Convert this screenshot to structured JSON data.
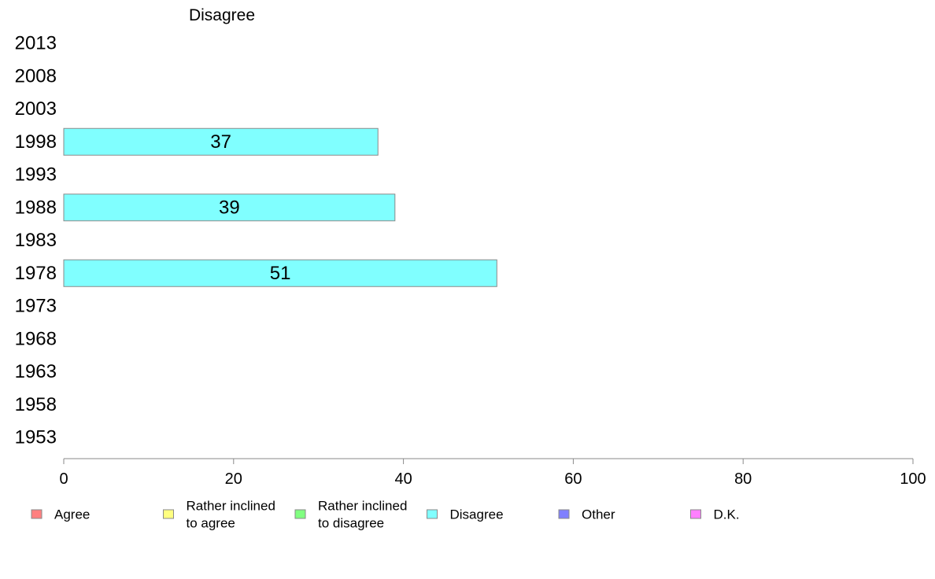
{
  "chart_data": {
    "type": "bar",
    "orientation": "horizontal",
    "title": "Disagree",
    "categories": [
      "2013",
      "2008",
      "2003",
      "1998",
      "1993",
      "1988",
      "1983",
      "1978",
      "1973",
      "1968",
      "1963",
      "1958",
      "1953"
    ],
    "series": [
      {
        "name": "Disagree",
        "color": "#80ffff",
        "values": [
          null,
          null,
          null,
          37,
          null,
          39,
          null,
          51,
          null,
          null,
          null,
          null,
          null
        ]
      }
    ],
    "xlim": [
      0,
      100
    ],
    "xticks": [
      0,
      20,
      40,
      60,
      80,
      100
    ],
    "grid": false,
    "legend_position": "bottom",
    "legend": [
      {
        "lines": [
          "Agree"
        ],
        "color": "#ff8080"
      },
      {
        "lines": [
          "Rather inclined",
          "to agree"
        ],
        "color": "#ffff80"
      },
      {
        "lines": [
          "Rather inclined",
          "to disagree"
        ],
        "color": "#80ff80"
      },
      {
        "lines": [
          "Disagree"
        ],
        "color": "#80ffff"
      },
      {
        "lines": [
          "Other"
        ],
        "color": "#8080ff"
      },
      {
        "lines": [
          "D.K."
        ],
        "color": "#ff80ff"
      }
    ]
  }
}
